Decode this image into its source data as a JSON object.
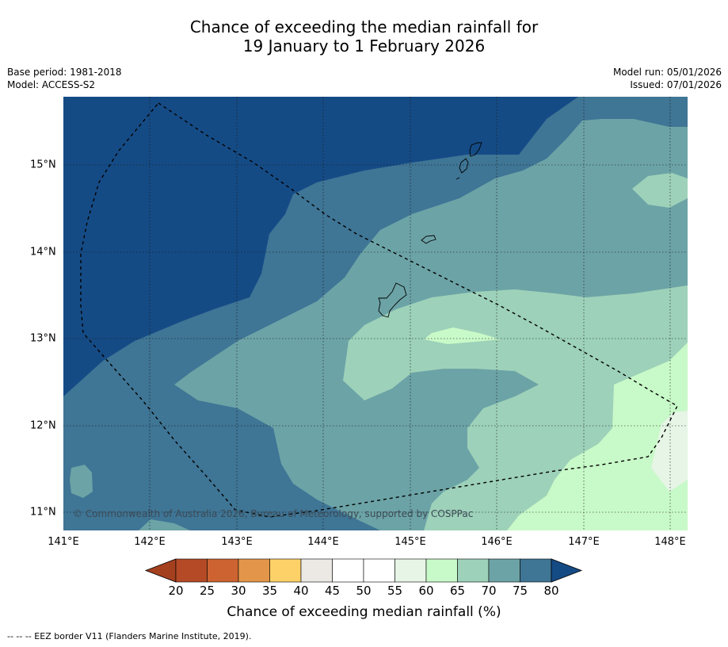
{
  "title_line1": "Chance of exceeding the median rainfall for",
  "title_line2": "19 January to 1 February 2026",
  "meta_left": {
    "base_period": "Base period: 1981-2018",
    "model": "Model: ACCESS-S2"
  },
  "meta_right": {
    "model_run": "Model run: 05/01/2026",
    "issued": "Issued: 07/01/2026"
  },
  "lat_labels": [
    "15°N",
    "14°N",
    "13°N",
    "12°N",
    "11°N"
  ],
  "lon_labels": [
    "141°E",
    "142°E",
    "143°E",
    "144°E",
    "145°E",
    "146°E",
    "147°E",
    "148°E"
  ],
  "copyright": "© Commonwealth of Australia 2026, Bureau of Meteorology, supported by COSPPac",
  "colorbar": {
    "ticks": [
      "20",
      "25",
      "30",
      "35",
      "40",
      "45",
      "50",
      "55",
      "60",
      "65",
      "70",
      "75",
      "80"
    ],
    "colors": [
      "#a5401f",
      "#b44a26",
      "#cc6330",
      "#e39649",
      "#fdd167",
      "#ece8e4",
      "#ffffff",
      "#ffffff",
      "#e6f5e6",
      "#c8f9c8",
      "#9dd1b9",
      "#6ca3a6",
      "#3f7595",
      "#154b85"
    ],
    "title": "Chance of exceeding median rainfall (%)"
  },
  "footnote": "--  --  -- EEZ border V11 (Flanders Marine Institute, 2019).",
  "map_colors": {
    "c80": "#154b85",
    "c75": "#3f7595",
    "c70": "#6ca3a6",
    "c65": "#9dd1b9",
    "c60": "#c8f9c8",
    "c55": "#e6f5e6"
  }
}
